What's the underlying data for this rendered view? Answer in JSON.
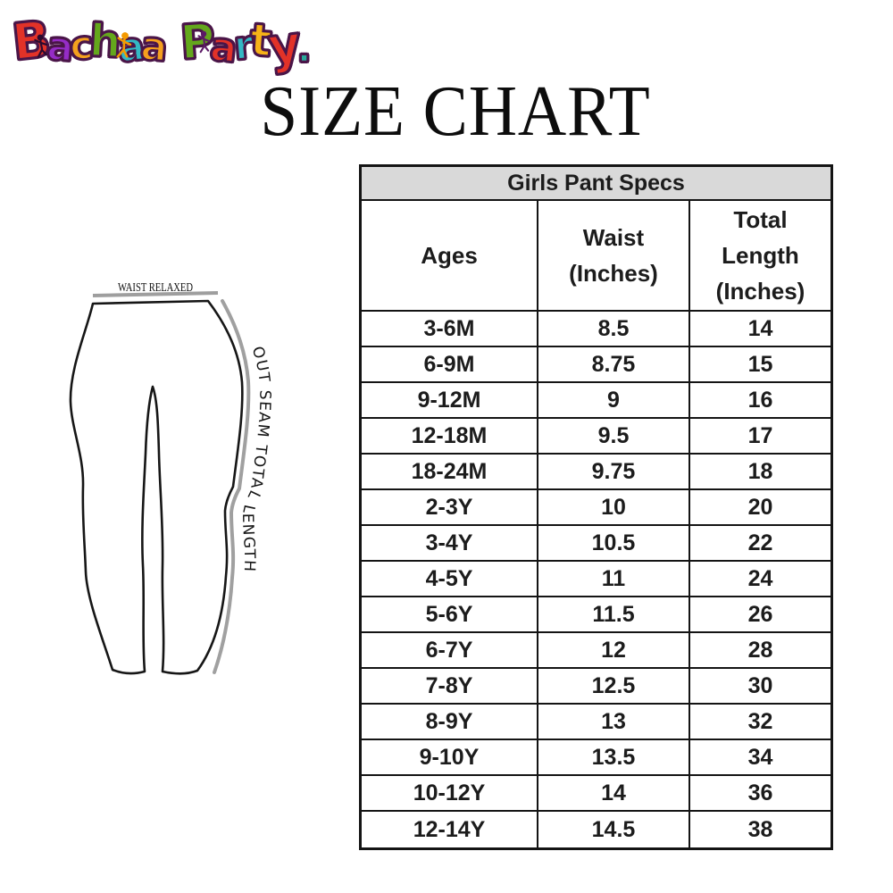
{
  "logo": {
    "brand": "Bachaa Party",
    "letters": [
      {
        "ch": "B",
        "color": "#e23228"
      },
      {
        "ch": "a",
        "color": "#952cc7"
      },
      {
        "ch": "c",
        "color": "#f5a01e"
      },
      {
        "ch": "h",
        "color": "#64a71c"
      },
      {
        "ch": "a",
        "color": "#33b8c4"
      },
      {
        "ch": "a",
        "color": "#f5a01e"
      },
      {
        "ch": " "
      },
      {
        "ch": "P",
        "color": "#64a71c"
      },
      {
        "ch": "a",
        "color": "#e23228"
      },
      {
        "ch": "r",
        "color": "#33b8c4"
      },
      {
        "ch": "t",
        "color": "#f7b217"
      },
      {
        "ch": "y",
        "color": "#e23228"
      },
      {
        "ch": ".",
        "color": "#2aa89b"
      }
    ]
  },
  "title": "SIZE CHART",
  "figure": {
    "waist_label": "WAIST RELAXED",
    "seam_label": "OUT SEAM TOTAL LENGTH"
  },
  "table": {
    "caption": "Girls Pant Specs",
    "columns": [
      "Ages",
      "Waist\n(Inches)",
      "Total\nLength\n(Inches)"
    ],
    "rows": [
      {
        "ages": "3-6M",
        "waist": "8.5",
        "length": "14"
      },
      {
        "ages": "6-9M",
        "waist": "8.75",
        "length": "15"
      },
      {
        "ages": "9-12M",
        "waist": "9",
        "length": "16"
      },
      {
        "ages": "12-18M",
        "waist": "9.5",
        "length": "17"
      },
      {
        "ages": "18-24M",
        "waist": "9.75",
        "length": "18"
      },
      {
        "ages": "2-3Y",
        "waist": "10",
        "length": "20"
      },
      {
        "ages": "3-4Y",
        "waist": "10.5",
        "length": "22"
      },
      {
        "ages": "4-5Y",
        "waist": "11",
        "length": "24"
      },
      {
        "ages": "5-6Y",
        "waist": "11.5",
        "length": "26"
      },
      {
        "ages": "6-7Y",
        "waist": "12",
        "length": "28"
      },
      {
        "ages": "7-8Y",
        "waist": "12.5",
        "length": "30"
      },
      {
        "ages": "8-9Y",
        "waist": "13",
        "length": "32"
      },
      {
        "ages": "9-10Y",
        "waist": "13.5",
        "length": "34"
      },
      {
        "ages": "10-12Y",
        "waist": "14",
        "length": "36"
      },
      {
        "ages": "12-14Y",
        "waist": "14.5",
        "length": "38"
      }
    ]
  },
  "colors": {
    "table_header_bg": "#d9d9d9",
    "table_border": "#141414",
    "measure_line": "#9e9e9e",
    "outline_purple": "#4a1548"
  }
}
